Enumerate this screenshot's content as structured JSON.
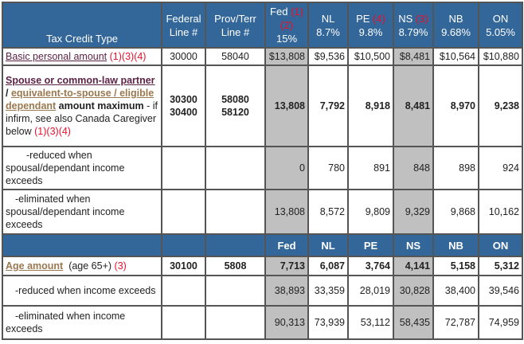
{
  "header": {
    "type": "Tax Credit Type",
    "fed_line": [
      "Federal",
      "Line #"
    ],
    "prov_line": [
      "Prov/Terr",
      "Line #"
    ],
    "cols": [
      {
        "name": "Fed",
        "note": "(1)(2)",
        "rate": "15%"
      },
      {
        "name": "NL",
        "note": "",
        "rate": "8.7%"
      },
      {
        "name": "PE",
        "note": "(4)",
        "rate": "9.8%"
      },
      {
        "name": "NS",
        "note": "(3)",
        "rate": "8.79%"
      },
      {
        "name": "NB",
        "note": "",
        "rate": "9.68%"
      },
      {
        "name": "ON",
        "note": "",
        "rate": "5.05%"
      }
    ]
  },
  "basic": {
    "label": "Basic personal amount",
    "notes": "(1)(3)(4)",
    "fed_line": "30000",
    "prov_line": "58040",
    "values": [
      "$13,808",
      "$9,536",
      "$10,500",
      "$8,481",
      "$10,564",
      "$10,880"
    ]
  },
  "spouse": {
    "link1": "Spouse or common-law partner ",
    "slash": "/",
    "link2": "equivalent-to-spouse / eligible dependant",
    "bold": " amount maximum",
    "rest": " - if infirm, see also Canada Caregiver below ",
    "notes": "(1)(3)(4)",
    "fed_line": [
      "30300",
      "30400"
    ],
    "prov_line": [
      "58080",
      "58120"
    ],
    "values": [
      "13,808",
      "7,792",
      "8,918",
      "8,481",
      "8,970",
      "9,238"
    ]
  },
  "spouse_reduced": {
    "label": "-reduced when spousal/dependant income exceeds",
    "values": [
      "0",
      "780",
      "891",
      "848",
      "898",
      "924"
    ]
  },
  "spouse_eliminated": {
    "label": "-eliminated when spousal/dependant income exceeds",
    "values": [
      "13,808",
      "8,572",
      "9,809",
      "9,329",
      "9,868",
      "10,162"
    ]
  },
  "subheader": [
    "Fed",
    "NL",
    "PE",
    "NS",
    "NB",
    "ON"
  ],
  "age": {
    "label": "Age amount",
    "extra": "(age 65+)",
    "notes": "(3)",
    "fed_line": "30100",
    "prov_line": "5808",
    "values": [
      "7,713",
      "6,087",
      "3,764",
      "4,141",
      "5,158",
      "5,312"
    ]
  },
  "age_reduced": {
    "label": "-reduced when income exceeds",
    "values": [
      "38,893",
      "33,359",
      "28,019",
      "30,828",
      "38,400",
      "39,546"
    ]
  },
  "age_eliminated": {
    "label": "-eliminated when income exceeds",
    "values": [
      "90,313",
      "73,939",
      "53,112",
      "58,435",
      "72,787",
      "74,959"
    ]
  }
}
